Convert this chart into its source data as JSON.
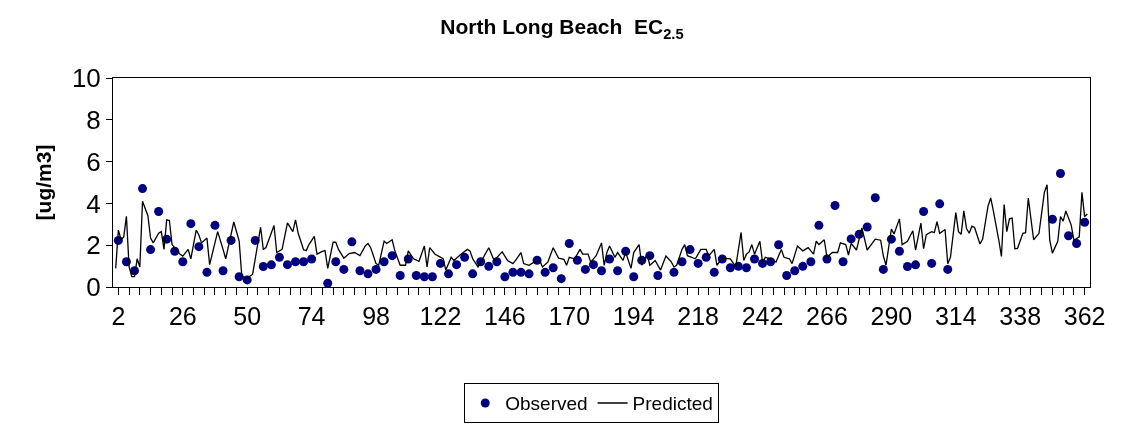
{
  "chart_data": {
    "type": "line",
    "title": "North Long Beach  EC$_{2.5}$",
    "ylabel": "[ug/m3]",
    "xlim": [
      0,
      364
    ],
    "ylim": [
      0,
      10
    ],
    "yticks": [
      0,
      2,
      4,
      6,
      8,
      10
    ],
    "xticks": [
      2,
      {
        "value": 6,
        "label": null
      },
      {
        "value": 10,
        "label": null
      },
      {
        "value": 14,
        "label": null
      },
      {
        "value": 18,
        "label": null
      },
      {
        "value": 22,
        "label": null
      },
      26,
      {
        "value": 30,
        "label": null
      },
      {
        "value": 34,
        "label": null
      },
      {
        "value": 38,
        "label": null
      },
      {
        "value": 42,
        "label": null
      },
      {
        "value": 46,
        "label": null
      },
      50,
      {
        "value": 54,
        "label": null
      },
      {
        "value": 58,
        "label": null
      },
      {
        "value": 62,
        "label": null
      },
      {
        "value": 66,
        "label": null
      },
      {
        "value": 70,
        "label": null
      },
      74,
      {
        "value": 78,
        "label": null
      },
      {
        "value": 82,
        "label": null
      },
      {
        "value": 86,
        "label": null
      },
      {
        "value": 90,
        "label": null
      },
      {
        "value": 94,
        "label": null
      },
      98,
      {
        "value": 102,
        "label": null
      },
      {
        "value": 106,
        "label": null
      },
      {
        "value": 110,
        "label": null
      },
      {
        "value": 114,
        "label": null
      },
      {
        "value": 118,
        "label": null
      },
      122,
      {
        "value": 126,
        "label": null
      },
      {
        "value": 130,
        "label": null
      },
      {
        "value": 134,
        "label": null
      },
      {
        "value": 138,
        "label": null
      },
      {
        "value": 142,
        "label": null
      },
      146,
      {
        "value": 150,
        "label": null
      },
      {
        "value": 154,
        "label": null
      },
      {
        "value": 158,
        "label": null
      },
      {
        "value": 162,
        "label": null
      },
      {
        "value": 166,
        "label": null
      },
      170,
      {
        "value": 174,
        "label": null
      },
      {
        "value": 178,
        "label": null
      },
      {
        "value": 182,
        "label": null
      },
      {
        "value": 186,
        "label": null
      },
      {
        "value": 190,
        "label": null
      },
      194,
      {
        "value": 198,
        "label": null
      },
      {
        "value": 202,
        "label": null
      },
      {
        "value": 206,
        "label": null
      },
      {
        "value": 210,
        "label": null
      },
      {
        "value": 214,
        "label": null
      },
      218,
      {
        "value": 222,
        "label": null
      },
      {
        "value": 226,
        "label": null
      },
      {
        "value": 230,
        "label": null
      },
      {
        "value": 234,
        "label": null
      },
      {
        "value": 238,
        "label": null
      },
      242,
      {
        "value": 246,
        "label": null
      },
      {
        "value": 250,
        "label": null
      },
      {
        "value": 254,
        "label": null
      },
      {
        "value": 258,
        "label": null
      },
      {
        "value": 262,
        "label": null
      },
      266,
      {
        "value": 270,
        "label": null
      },
      {
        "value": 274,
        "label": null
      },
      {
        "value": 278,
        "label": null
      },
      {
        "value": 282,
        "label": null
      },
      {
        "value": 286,
        "label": null
      },
      290,
      {
        "value": 294,
        "label": null
      },
      {
        "value": 298,
        "label": null
      },
      {
        "value": 302,
        "label": null
      },
      {
        "value": 306,
        "label": null
      },
      {
        "value": 310,
        "label": null
      },
      314,
      {
        "value": 318,
        "label": null
      },
      {
        "value": 322,
        "label": null
      },
      {
        "value": 326,
        "label": null
      },
      {
        "value": 330,
        "label": null
      },
      {
        "value": 334,
        "label": null
      },
      338,
      {
        "value": 342,
        "label": null
      },
      {
        "value": 346,
        "label": null
      },
      {
        "value": 350,
        "label": null
      },
      {
        "value": 354,
        "label": null
      },
      {
        "value": 358,
        "label": null
      },
      362
    ],
    "grid": false,
    "legend": "bottom",
    "series": [
      {
        "name": "Observed",
        "type": "scatter",
        "marker": "circle",
        "color": "#000080",
        "x": [
          2,
          5,
          8,
          11,
          14,
          17,
          20,
          23,
          26,
          29,
          32,
          35,
          38,
          41,
          44,
          47,
          50,
          53,
          56,
          59,
          62,
          65,
          68,
          71,
          74,
          80,
          83,
          86,
          89,
          92,
          95,
          98,
          101,
          104,
          107,
          110,
          113,
          116,
          119,
          122,
          125,
          128,
          131,
          134,
          137,
          140,
          143,
          146,
          149,
          152,
          155,
          158,
          161,
          164,
          167,
          170,
          173,
          176,
          179,
          182,
          185,
          188,
          191,
          194,
          197,
          200,
          203,
          209,
          212,
          215,
          218,
          221,
          224,
          227,
          230,
          233,
          236,
          239,
          242,
          245,
          248,
          251,
          254,
          257,
          260,
          263,
          266,
          269,
          272,
          275,
          278,
          281,
          284,
          287,
          290,
          293,
          296,
          299,
          302,
          305,
          308,
          311,
          350,
          353,
          356,
          359,
          362
        ],
        "values": [
          2.23,
          1.21,
          0.78,
          4.71,
          1.79,
          3.61,
          2.29,
          1.71,
          1.21,
          3.03,
          1.93,
          0.7,
          2.95,
          0.78,
          2.23,
          0.49,
          0.34,
          2.23,
          0.98,
          1.06,
          1.42,
          1.07,
          1.21,
          1.21,
          1.34,
          0.18,
          1.21,
          0.84,
          2.16,
          0.78,
          0.63,
          0.84,
          1.21,
          1.5,
          0.55,
          1.34,
          0.55,
          0.49,
          0.49,
          1.13,
          0.63,
          1.07,
          1.42,
          0.63,
          1.21,
          0.99,
          1.21,
          0.49,
          0.7,
          0.7,
          0.63,
          1.28,
          0.7,
          0.92,
          0.4,
          2.08,
          1.28,
          0.84,
          1.07,
          0.78,
          1.34,
          0.78,
          1.71,
          0.49,
          1.28,
          1.5,
          0.55,
          0.7,
          1.21,
          1.79,
          1.13,
          1.42,
          0.7,
          1.34,
          0.92,
          0.99,
          0.92,
          1.34,
          1.13,
          1.21,
          2.02,
          0.55,
          0.78,
          0.99,
          1.21,
          2.95,
          1.34,
          3.9,
          1.21,
          2.3,
          2.52,
          2.87,
          4.27,
          0.84,
          2.29,
          1.71,
          0.98,
          1.06,
          3.61,
          1.13,
          3.98,
          0.84,
          3.24,
          5.43,
          2.45,
          2.08,
          3.1
        ]
      },
      {
        "name": "Predicted",
        "marker": "none",
        "line_style": "solid",
        "color": "#000000",
        "x": [
          1,
          2,
          3,
          4,
          5,
          6,
          7,
          8,
          9,
          10,
          11,
          13,
          14,
          15,
          17,
          18,
          19,
          20,
          21,
          22,
          25,
          26,
          28,
          29,
          31,
          32,
          33,
          35,
          36,
          39,
          41,
          42,
          45,
          47,
          48,
          50,
          52,
          55,
          56,
          57,
          60,
          61,
          63,
          65,
          67,
          68,
          69,
          71,
          72,
          73,
          75,
          76,
          78,
          79,
          80,
          82,
          83,
          84,
          86,
          88,
          90,
          92,
          94,
          95,
          96,
          98,
          99,
          101,
          102,
          104,
          105,
          107,
          109,
          110,
          112,
          114,
          116,
          117,
          118,
          120,
          123,
          124,
          126,
          127,
          129,
          132,
          133,
          134,
          136,
          137,
          140,
          142,
          144,
          145,
          147,
          149,
          150,
          152,
          153,
          155,
          157,
          159,
          160,
          162,
          164,
          166,
          168,
          169,
          170,
          172,
          174,
          175,
          177,
          178,
          180,
          182,
          183,
          184,
          185,
          187,
          188,
          190,
          191,
          193,
          194,
          196,
          197,
          199,
          200,
          202,
          204,
          206,
          208,
          209,
          210,
          212,
          213,
          214,
          217,
          219,
          221,
          222,
          224,
          225,
          227,
          230,
          232,
          234,
          235,
          236,
          237,
          238,
          239,
          241,
          242,
          243,
          245,
          247,
          249,
          250,
          252,
          253,
          255,
          257,
          259,
          261,
          262,
          263,
          265,
          266,
          268,
          270,
          271,
          273,
          274,
          275,
          277,
          279,
          281,
          284,
          286,
          287,
          288,
          290,
          291,
          293,
          294,
          296,
          298,
          299,
          301,
          302,
          303,
          305,
          306,
          307,
          308,
          310,
          311,
          312,
          314,
          315,
          316,
          317,
          318,
          319,
          320,
          321,
          323,
          324,
          326,
          327,
          328,
          330,
          331,
          332,
          333,
          334,
          335,
          336,
          337,
          339,
          340,
          341,
          343,
          345,
          347,
          348,
          349,
          350,
          352,
          353,
          354,
          355,
          357,
          358,
          360,
          361,
          362,
          363
        ],
        "values": [
          0.89,
          2.72,
          2.26,
          2.4,
          3.38,
          0.96,
          0.5,
          0.5,
          1.35,
          0.96,
          4.1,
          3.41,
          2.34,
          2.11,
          2.57,
          2.65,
          1.8,
          3.21,
          3.18,
          2.03,
          1.57,
          1.48,
          1.8,
          1.35,
          2.72,
          2.49,
          2.11,
          2.34,
          1.07,
          2.65,
          1.8,
          1.35,
          3.11,
          2.2,
          0.5,
          0.44,
          0.6,
          2.86,
          1.79,
          1.89,
          2.94,
          1.65,
          1.8,
          3.07,
          2.65,
          3.21,
          2.57,
          1.78,
          1.74,
          2.03,
          2.42,
          1.57,
          1.7,
          1.74,
          0.89,
          2.14,
          2.14,
          1.8,
          1.38,
          1.6,
          1.65,
          1.5,
          1.97,
          2.08,
          1.88,
          1.12,
          1.04,
          2.19,
          2.08,
          2.26,
          1.73,
          1.04,
          1.04,
          1.73,
          1.35,
          1.23,
          1.96,
          0.96,
          1.88,
          1.57,
          1.35,
          0.81,
          1.42,
          1.27,
          1.5,
          1.8,
          1.73,
          1.35,
          0.96,
          1.19,
          1.88,
          1.27,
          1.55,
          1.68,
          1.27,
          1.12,
          1.27,
          1.65,
          1.12,
          1.04,
          1.2,
          1.27,
          0.96,
          1.19,
          1.88,
          1.38,
          1.32,
          1.04,
          1.42,
          1.35,
          1.8,
          1.57,
          1.57,
          1.19,
          1.5,
          2.11,
          1.04,
          1.65,
          1.96,
          1.42,
          1.65,
          1.27,
          1.65,
          0.89,
          1.65,
          2.03,
          1.04,
          1.57,
          1.04,
          1.27,
          0.81,
          1.48,
          1.2,
          0.96,
          1.04,
          1.8,
          2.03,
          1.5,
          1.35,
          1.8,
          1.8,
          1.5,
          1.8,
          1.04,
          1.38,
          1.35,
          0.96,
          2.61,
          1.27,
          1.57,
          1.68,
          2.03,
          1.57,
          2.19,
          1.19,
          1.42,
          1.35,
          1.19,
          1.8,
          1.42,
          1.35,
          1.12,
          1.96,
          1.73,
          1.88,
          1.57,
          2.19,
          2.03,
          2.26,
          1.42,
          1.65,
          1.65,
          2.11,
          2.03,
          1.53,
          2.08,
          1.77,
          2.83,
          1.77,
          2.29,
          2.24,
          1.49,
          1.04,
          2.77,
          2.54,
          3.26,
          2.03,
          2.19,
          2.69,
          1.77,
          3.06,
          1.83,
          2.5,
          2.65,
          2.6,
          3.13,
          2.57,
          2.75,
          1.11,
          1.42,
          3.56,
          2.65,
          2.52,
          3.64,
          2.8,
          2.57,
          2.91,
          2.85,
          2.06,
          2.29,
          3.87,
          4.26,
          3.64,
          2.26,
          1.46,
          3.94,
          2.65,
          3.26,
          3.3,
          1.83,
          1.85,
          2.57,
          2.6,
          4.26,
          2.26,
          2.57,
          4.53,
          4.89,
          2.24,
          1.62,
          2.19,
          3.37,
          3.15,
          3.64,
          2.96,
          2.24,
          2.4,
          4.53,
          3.37,
          3.49
        ]
      }
    ]
  }
}
